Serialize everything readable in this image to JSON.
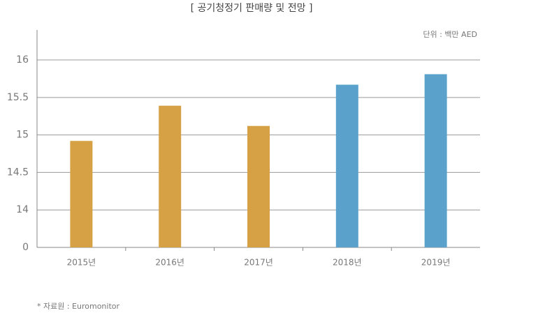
{
  "chart_data": {
    "type": "bar",
    "title": "[ 공기청정기 판매량 및 전망 ]",
    "unit": "단위 : 백만 AED",
    "source": "* 자료원 : Euromonitor",
    "categories": [
      "2015년",
      "2016년",
      "2017년",
      "2018년",
      "2019년"
    ],
    "values": [
      14.92,
      15.39,
      15.12,
      15.67,
      15.81
    ],
    "colors": [
      "#d6a144",
      "#d6a144",
      "#d6a144",
      "#5aa2cc",
      "#5aa2cc"
    ],
    "ylim": [
      0,
      16.4
    ],
    "yticks": [
      0,
      14,
      14.5,
      15,
      15.5,
      16
    ],
    "axis_break": [
      0,
      14
    ],
    "grid": true
  }
}
